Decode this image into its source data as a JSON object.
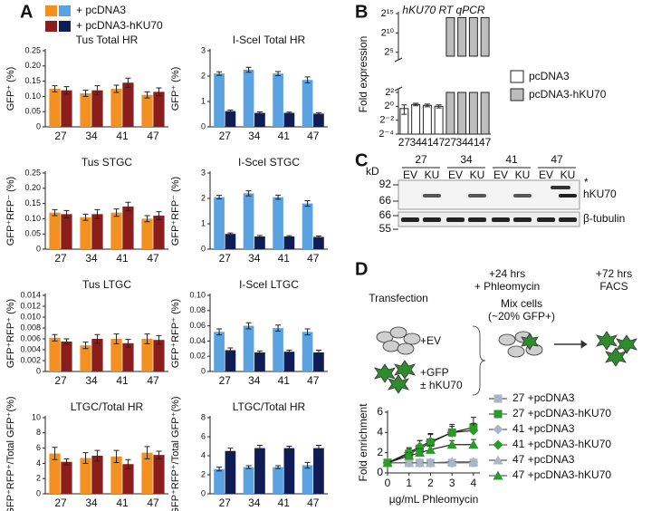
{
  "panel_labels": [
    "A",
    "B",
    "C",
    "D"
  ],
  "legend": {
    "entries": [
      {
        "name": "+ pcDNA3",
        "colors": [
          "#f39020",
          "#5ba3e0"
        ]
      },
      {
        "name": "+ pcDNA3-hKU70",
        "colors": [
          "#8c1d1d",
          "#101c55"
        ]
      }
    ]
  },
  "chart_data": [
    {
      "type": "bar",
      "title": "Tus Total HR",
      "ylabel": "GFP⁺ (%)",
      "categories": [
        "27",
        "34",
        "41",
        "47"
      ],
      "ylim": [
        0,
        0.25
      ],
      "yticks": [
        0,
        0.05,
        {
          "value": 0.1,
          "label": "0.10"
        },
        0.15,
        {
          "value": 0.2,
          "label": "0.20"
        },
        0.25
      ],
      "series": [
        {
          "color": "#f39020",
          "values": [
            0.125,
            0.11,
            0.125,
            0.105
          ],
          "errors": [
            0.01,
            0.01,
            0.012,
            0.01
          ]
        },
        {
          "color": "#8c1d1d",
          "values": [
            0.12,
            0.12,
            0.145,
            0.115
          ],
          "errors": [
            0.012,
            0.015,
            0.015,
            0.013
          ]
        }
      ]
    },
    {
      "type": "bar",
      "title": "I-SceI Total HR",
      "ylabel": "GFP⁺ (%)",
      "categories": [
        "27",
        "34",
        "41",
        "47"
      ],
      "ylim": [
        0,
        3
      ],
      "yticks": [
        0,
        1,
        2,
        3
      ],
      "series": [
        {
          "color": "#5ba3e0",
          "values": [
            2.1,
            2.25,
            2.1,
            1.85
          ],
          "errors": [
            0.07,
            0.1,
            0.08,
            0.12
          ]
        },
        {
          "color": "#101c55",
          "values": [
            0.62,
            0.55,
            0.55,
            0.52
          ],
          "errors": [
            0.04,
            0.04,
            0.03,
            0.04
          ]
        }
      ]
    },
    {
      "type": "bar",
      "title": "Tus STGC",
      "ylabel": "GFP⁺RFP⁻ (%)",
      "categories": [
        "27",
        "34",
        "41",
        "47"
      ],
      "ylim": [
        0,
        0.25
      ],
      "yticks": [
        0,
        0.05,
        {
          "value": 0.1,
          "label": "0.10"
        },
        0.15,
        {
          "value": 0.2,
          "label": "0.20"
        },
        0.25
      ],
      "series": [
        {
          "color": "#f39020",
          "values": [
            0.12,
            0.105,
            0.12,
            0.1
          ],
          "errors": [
            0.01,
            0.01,
            0.012,
            0.01
          ]
        },
        {
          "color": "#8c1d1d",
          "values": [
            0.115,
            0.115,
            0.14,
            0.11
          ],
          "errors": [
            0.012,
            0.015,
            0.014,
            0.013
          ]
        }
      ]
    },
    {
      "type": "bar",
      "title": "I-SceI STGC",
      "ylabel": "GFP⁺RFP⁻ (%)",
      "categories": [
        "27",
        "34",
        "41",
        "47"
      ],
      "ylim": [
        0,
        3
      ],
      "yticks": [
        0,
        1,
        2,
        3
      ],
      "series": [
        {
          "color": "#5ba3e0",
          "values": [
            2.05,
            2.2,
            2.05,
            1.8
          ],
          "errors": [
            0.07,
            0.1,
            0.08,
            0.11
          ]
        },
        {
          "color": "#101c55",
          "values": [
            0.6,
            0.5,
            0.5,
            0.48
          ],
          "errors": [
            0.04,
            0.04,
            0.03,
            0.04
          ]
        }
      ]
    },
    {
      "type": "bar",
      "title": "Tus LTGC",
      "ylabel": "GFP⁺RFP⁺ (%)",
      "categories": [
        "27",
        "34",
        "41",
        "47"
      ],
      "ylim": [
        0,
        0.014
      ],
      "yticks": [
        0,
        0.002,
        0.004,
        0.006,
        0.008,
        {
          "value": 0.01,
          "label": "0.010"
        },
        0.012,
        0.014
      ],
      "series": [
        {
          "color": "#f39020",
          "values": [
            0.0062,
            0.0048,
            0.006,
            0.006
          ],
          "errors": [
            0.0006,
            0.0006,
            0.0009,
            0.0009
          ]
        },
        {
          "color": "#8c1d1d",
          "values": [
            0.0055,
            0.006,
            0.0052,
            0.0058
          ],
          "errors": [
            0.0005,
            0.0008,
            0.0007,
            0.0008
          ]
        }
      ]
    },
    {
      "type": "bar",
      "title": "I-SceI LTGC",
      "ylabel": "GFP⁺RFP⁺ (%)",
      "categories": [
        "27",
        "34",
        "41",
        "47"
      ],
      "ylim": [
        0,
        0.1
      ],
      "yticks": [
        0,
        0.02,
        0.04,
        0.06,
        0.08,
        {
          "value": 0.1,
          "label": "0.10"
        }
      ],
      "series": [
        {
          "color": "#5ba3e0",
          "values": [
            0.052,
            0.06,
            0.057,
            0.052
          ],
          "errors": [
            0.004,
            0.004,
            0.004,
            0.004
          ]
        },
        {
          "color": "#101c55",
          "values": [
            0.028,
            0.025,
            0.026,
            0.025
          ],
          "errors": [
            0.003,
            0.002,
            0.002,
            0.003
          ]
        }
      ]
    },
    {
      "type": "bar",
      "title": "LTGC/Total HR",
      "ylabel": "GFP⁺RFP⁺/Total GFP⁺(%)",
      "categories": [
        "27",
        "34",
        "41",
        "47"
      ],
      "ylim": [
        0,
        10
      ],
      "yticks": [
        0,
        2,
        4,
        6,
        8,
        10
      ],
      "series": [
        {
          "color": "#f39020",
          "values": [
            5.3,
            4.7,
            4.9,
            5.4
          ],
          "errors": [
            0.8,
            0.7,
            0.8,
            0.8
          ]
        },
        {
          "color": "#8c1d1d",
          "values": [
            4.2,
            5.0,
            3.9,
            5.1
          ],
          "errors": [
            0.4,
            0.7,
            0.6,
            0.5
          ]
        }
      ]
    },
    {
      "type": "bar",
      "title": "LTGC/Total HR",
      "ylabel": "GFP⁺RFP⁺/Total GFP⁺(%)",
      "categories": [
        "27",
        "34",
        "41",
        "47"
      ],
      "ylim": [
        0,
        8
      ],
      "yticks": [
        0,
        2,
        4,
        6,
        8
      ],
      "series": [
        {
          "color": "#5ba3e0",
          "values": [
            2.6,
            2.8,
            2.8,
            3.0
          ],
          "errors": [
            0.2,
            0.15,
            0.15,
            0.3
          ]
        },
        {
          "color": "#101c55",
          "values": [
            4.5,
            4.8,
            4.8,
            4.8
          ],
          "errors": [
            0.3,
            0.3,
            0.2,
            0.3
          ]
        }
      ]
    },
    {
      "type": "bar",
      "title": "hKU70 RT qPCR",
      "ylabel": "Fold expression",
      "categories": [
        "27",
        "34",
        "41",
        "47"
      ],
      "log_base": 2,
      "ylim": [
        0.0625,
        32768
      ],
      "ybreak": [
        4,
        16
      ],
      "yticks": [
        {
          "value": 0.0625,
          "label": "2⁻⁴"
        },
        {
          "value": 0.25,
          "label": "2⁻²"
        },
        {
          "value": 1,
          "label": "2⁰"
        },
        {
          "value": 4,
          "label": "2²"
        },
        {
          "value": 32,
          "label": "2⁵"
        },
        {
          "value": 1024,
          "label": "2¹⁰"
        },
        {
          "value": 32768,
          "label": "2¹⁵"
        }
      ],
      "series": [
        {
          "name": "pcDNA3",
          "color": "#ffffff",
          "values": [
            0.8,
            1.2,
            1.1,
            1.0
          ],
          "errors": [
            0.35,
            0.15,
            0.15,
            0.15
          ]
        },
        {
          "name": "pcDNA3-hKU70",
          "color": "#bdbdbd",
          "values": [
            16000,
            16000,
            16000,
            16000
          ]
        }
      ]
    },
    {
      "type": "line",
      "ylabel": "Fold enrichment",
      "xlabel": "µg/mL Phleomycin",
      "x": [
        0,
        1,
        1.5,
        2,
        3,
        4
      ],
      "xlim": [
        0,
        4.3
      ],
      "xticks": [
        0,
        1,
        2,
        3,
        4
      ],
      "ylim": [
        0,
        6
      ],
      "yticks": [
        0,
        2,
        4,
        6
      ],
      "series": [
        {
          "name": "27 +pcDNA3",
          "color": "#a9b6c6",
          "marker": "square",
          "values": [
            1,
            1,
            1,
            1,
            1,
            1
          ]
        },
        {
          "name": "27 +pcDNA3-hKU70",
          "color": "#2a9a2a",
          "marker": "square",
          "values": [
            1,
            1.9,
            2.4,
            3.0,
            4.0,
            4.5
          ],
          "errors": [
            0,
            0.6,
            0.8,
            0.9,
            0.8,
            1.0
          ]
        },
        {
          "name": "41 +pcDNA3",
          "color": "#a9b6c6",
          "marker": "diamond",
          "values": [
            1,
            1,
            1,
            1,
            1,
            1.05
          ]
        },
        {
          "name": "41 +pcDNA3-hKU70",
          "color": "#2a9a2a",
          "marker": "diamond",
          "values": [
            1,
            2.0,
            2.6,
            3.1,
            4.0,
            4.2
          ],
          "errors": [
            0,
            0.4,
            0.6,
            0.7,
            0.6,
            0.7
          ]
        },
        {
          "name": "47 +pcDNA3",
          "color": "#a9b6c6",
          "marker": "triangle",
          "values": [
            1,
            1,
            1,
            1,
            1.1,
            1.1
          ]
        },
        {
          "name": "47 +pcDNA3-hKU70",
          "color": "#2a9a2a",
          "marker": "triangle",
          "values": [
            1,
            1.7,
            2.0,
            2.3,
            2.8,
            2.8
          ],
          "errors": [
            0,
            0.3,
            0.4,
            0.4,
            0.4,
            0.5
          ]
        }
      ]
    }
  ],
  "blot": {
    "unit": "kD",
    "groups": [
      "27",
      "34",
      "41",
      "47"
    ],
    "lanes": [
      "EV",
      "KU"
    ],
    "markers": [
      "92",
      "66",
      "66",
      "55"
    ],
    "bands": [
      "*",
      "hKU70",
      "β-tubulin"
    ]
  },
  "diagram": {
    "steps": [
      "Transfection",
      "+24 hrs",
      "+ Phleomycin",
      "+72 hrs",
      "FACS"
    ],
    "mix": [
      "Mix cells",
      "(~20% GFP+)"
    ],
    "conditions": [
      "+EV",
      "+GFP",
      "± hKU70"
    ]
  }
}
